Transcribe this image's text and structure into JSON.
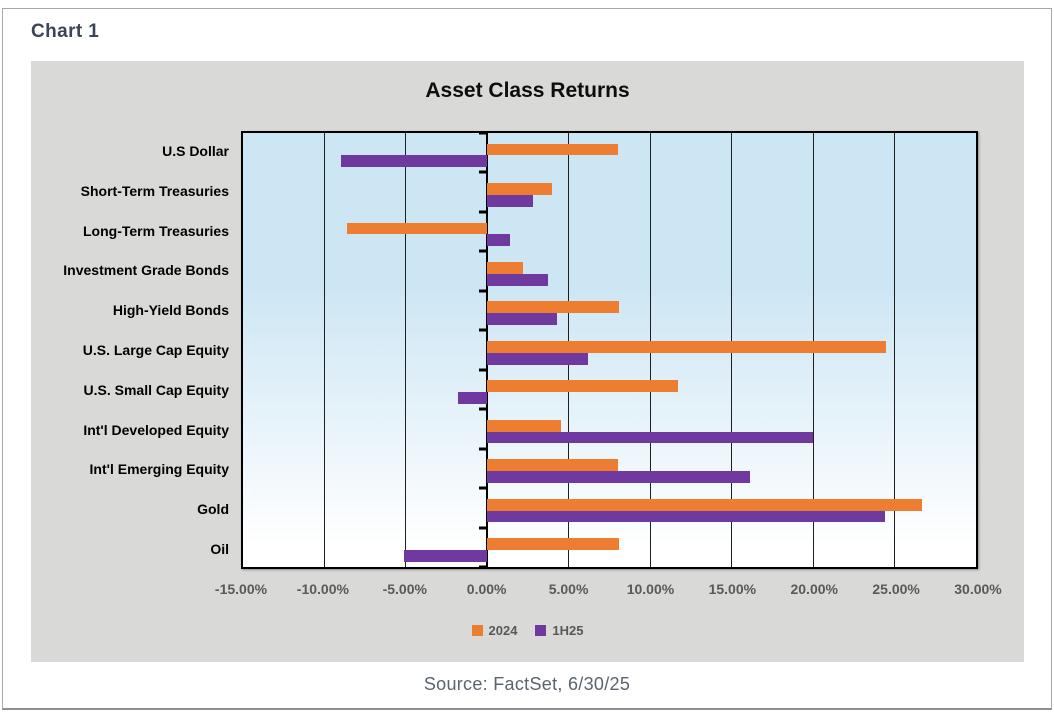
{
  "page": {
    "chart_label": "Chart 1",
    "source": "Source: FactSet, 6/30/25"
  },
  "chart_data": {
    "type": "bar",
    "orientation": "horizontal",
    "title": "Asset Class Returns",
    "categories": [
      "U.S Dollar",
      "Short-Term Treasuries",
      "Long-Term Treasuries",
      "Investment Grade Bonds",
      "High-Yield Bonds",
      "U.S. Large Cap Equity",
      "U.S. Small Cap Equity",
      "Int'l Developed Equity",
      "Int'l Emerging Equity",
      "Gold",
      "Oil"
    ],
    "series": [
      {
        "name": "2024",
        "color": "#ED7D31",
        "values": [
          8.0,
          4.0,
          -8.6,
          2.2,
          8.1,
          24.5,
          11.7,
          4.5,
          8.0,
          26.7,
          8.1
        ]
      },
      {
        "name": "1H25",
        "color": "#7039A0",
        "values": [
          -9.0,
          2.8,
          1.4,
          3.7,
          4.3,
          6.2,
          -1.8,
          20.0,
          16.1,
          24.4,
          -5.1
        ]
      }
    ],
    "x_tick_labels": [
      "-15.00%",
      "-10.00%",
      "-5.00%",
      "0.00%",
      "5.00%",
      "10.00%",
      "15.00%",
      "20.00%",
      "25.00%",
      "30.00%"
    ],
    "xlim": [
      -15,
      30
    ],
    "gridline_step": 5,
    "grid": true,
    "legend_position": "bottom",
    "plot_background": {
      "top": "#CDE6F4",
      "bottom": "#FFFFFF"
    },
    "panel_background": "#D9D9D7",
    "value_format": "percent"
  }
}
